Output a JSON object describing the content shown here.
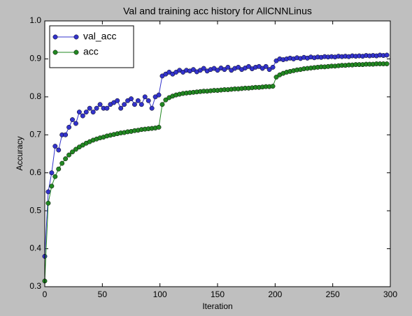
{
  "chart_data": {
    "type": "line",
    "title": "Val and training acc history for AllCNNLinus",
    "x_label": "Iteration",
    "y_label": "Accuracy",
    "xlim": [
      0,
      300
    ],
    "xticks": [
      0,
      50,
      100,
      150,
      200,
      250,
      300
    ],
    "ylim": [
      0.3,
      1
    ],
    "yticks": [
      0.3,
      0.4,
      0.5,
      0.6,
      0.7,
      0.8,
      0.9,
      {
        "value": 1,
        "label": "1.0"
      }
    ],
    "legend": "upper left",
    "x": [
      0,
      3,
      6,
      9,
      12,
      15,
      18,
      21,
      24,
      27,
      30,
      33,
      36,
      39,
      42,
      45,
      48,
      51,
      54,
      57,
      60,
      63,
      66,
      69,
      72,
      75,
      78,
      81,
      84,
      87,
      90,
      93,
      96,
      99,
      102,
      105,
      108,
      111,
      114,
      117,
      120,
      123,
      126,
      129,
      132,
      135,
      138,
      141,
      144,
      147,
      150,
      153,
      156,
      159,
      162,
      165,
      168,
      171,
      174,
      177,
      180,
      183,
      186,
      189,
      192,
      195,
      198,
      201,
      204,
      207,
      210,
      213,
      216,
      219,
      222,
      225,
      228,
      231,
      234,
      237,
      240,
      243,
      246,
      249,
      252,
      255,
      258,
      261,
      264,
      267,
      270,
      273,
      276,
      279,
      282,
      285,
      288,
      291,
      294,
      297
    ],
    "series": [
      {
        "name": "val_acc",
        "color": "#3333cc",
        "values": [
          0.38,
          0.55,
          0.6,
          0.67,
          0.66,
          0.7,
          0.7,
          0.72,
          0.74,
          0.73,
          0.76,
          0.75,
          0.76,
          0.77,
          0.76,
          0.77,
          0.78,
          0.77,
          0.77,
          0.78,
          0.785,
          0.79,
          0.77,
          0.78,
          0.79,
          0.795,
          0.78,
          0.79,
          0.78,
          0.8,
          0.79,
          0.77,
          0.8,
          0.805,
          0.855,
          0.86,
          0.865,
          0.86,
          0.865,
          0.87,
          0.865,
          0.87,
          0.868,
          0.872,
          0.866,
          0.87,
          0.875,
          0.868,
          0.872,
          0.875,
          0.87,
          0.876,
          0.872,
          0.878,
          0.87,
          0.875,
          0.878,
          0.872,
          0.876,
          0.88,
          0.874,
          0.878,
          0.88,
          0.875,
          0.88,
          0.872,
          0.878,
          0.895,
          0.9,
          0.898,
          0.9,
          0.902,
          0.9,
          0.903,
          0.901,
          0.904,
          0.902,
          0.905,
          0.903,
          0.905,
          0.904,
          0.906,
          0.905,
          0.906,
          0.905,
          0.907,
          0.906,
          0.907,
          0.906,
          0.908,
          0.907,
          0.908,
          0.907,
          0.909,
          0.908,
          0.909,
          0.908,
          0.91,
          0.909,
          0.91
        ]
      },
      {
        "name": "acc",
        "color": "#228822",
        "values": [
          0.315,
          0.52,
          0.565,
          0.59,
          0.61,
          0.625,
          0.637,
          0.647,
          0.655,
          0.662,
          0.668,
          0.673,
          0.678,
          0.682,
          0.686,
          0.689,
          0.692,
          0.694,
          0.697,
          0.699,
          0.701,
          0.703,
          0.705,
          0.706,
          0.708,
          0.709,
          0.711,
          0.712,
          0.714,
          0.715,
          0.716,
          0.717,
          0.718,
          0.72,
          0.78,
          0.792,
          0.798,
          0.802,
          0.805,
          0.807,
          0.809,
          0.81,
          0.811,
          0.812,
          0.813,
          0.814,
          0.815,
          0.815,
          0.816,
          0.817,
          0.817,
          0.818,
          0.819,
          0.819,
          0.82,
          0.821,
          0.821,
          0.822,
          0.823,
          0.823,
          0.824,
          0.825,
          0.825,
          0.826,
          0.827,
          0.827,
          0.828,
          0.852,
          0.858,
          0.862,
          0.865,
          0.867,
          0.869,
          0.871,
          0.872,
          0.874,
          0.875,
          0.876,
          0.877,
          0.878,
          0.879,
          0.879,
          0.88,
          0.881,
          0.881,
          0.882,
          0.883,
          0.883,
          0.884,
          0.884,
          0.885,
          0.885,
          0.885,
          0.886,
          0.886,
          0.886,
          0.887,
          0.887,
          0.887,
          0.887
        ]
      }
    ]
  }
}
